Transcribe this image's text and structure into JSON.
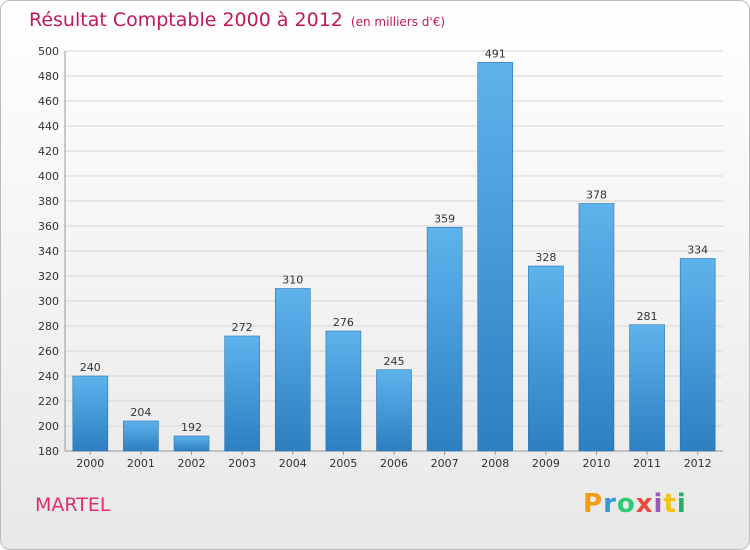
{
  "header": {
    "title": "Résultat Comptable 2000 à 2012",
    "unit": "(en milliers d'€)"
  },
  "commune": "MARTEL",
  "logo": {
    "letters": [
      "P",
      "r",
      "o",
      "x",
      "i",
      "t",
      "i"
    ],
    "colors": [
      "#f39c12",
      "#3498db",
      "#2ecc71",
      "#e74c3c",
      "#9b59b6",
      "#f1c40f",
      "#27ae60"
    ]
  },
  "chart_data": {
    "type": "bar",
    "title": "Résultat Comptable 2000 à 2012",
    "subtitle": "(en milliers d'€)",
    "xlabel": "",
    "ylabel": "",
    "categories": [
      "2000",
      "2001",
      "2002",
      "2003",
      "2004",
      "2005",
      "2006",
      "2007",
      "2008",
      "2009",
      "2010",
      "2011",
      "2012"
    ],
    "values": [
      240,
      204,
      192,
      272,
      310,
      276,
      245,
      359,
      491,
      328,
      378,
      281,
      334
    ],
    "ylim": [
      180,
      500
    ],
    "yticks": [
      180,
      200,
      220,
      240,
      260,
      280,
      300,
      320,
      340,
      360,
      380,
      400,
      420,
      440,
      460,
      480,
      500
    ],
    "grid": true,
    "bar_color": "#3f9ee0"
  }
}
